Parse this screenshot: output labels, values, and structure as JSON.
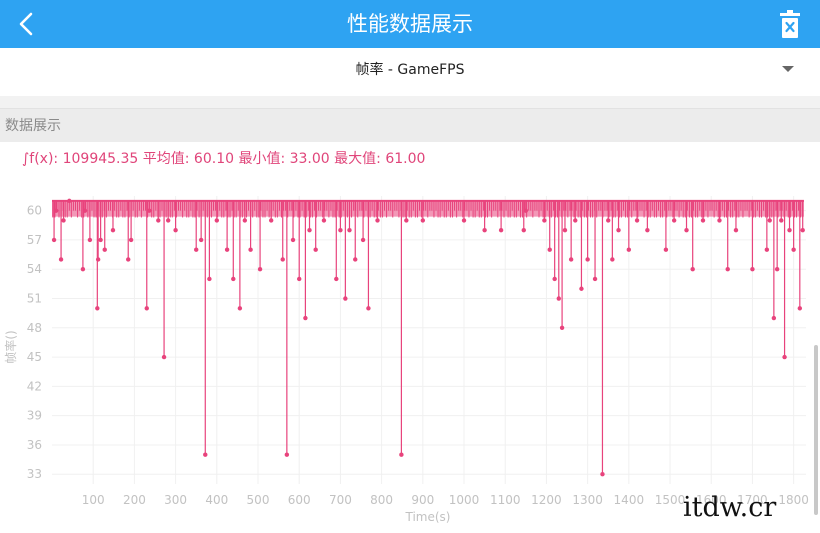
{
  "header": {
    "title": "性能数据展示",
    "back_icon": "chevron-left-icon",
    "delete_icon": "trash-icon",
    "background_color": "#2ea3f2"
  },
  "selector": {
    "label": "帧率 - GameFPS"
  },
  "section": {
    "title": "数据展示"
  },
  "stats": {
    "text": "∫f(x): 109945.35 平均值: 60.10 最小值: 33.00 最大值: 61.00"
  },
  "watermark": "itdw.cr",
  "chart_data": {
    "type": "line",
    "title": "",
    "xlabel": "Time(s)",
    "ylabel": "帧率()",
    "xlim": [
      0,
      1830
    ],
    "ylim": [
      32,
      61.5
    ],
    "x_ticks": [
      100,
      200,
      300,
      400,
      500,
      600,
      700,
      800,
      900,
      1000,
      1100,
      1200,
      1300,
      1400,
      1500,
      1600,
      1700,
      1800
    ],
    "y_ticks": [
      33,
      36,
      39,
      42,
      45,
      48,
      51,
      54,
      57,
      60
    ],
    "line_color": "#e8437c",
    "grid": true,
    "legend": "none",
    "series": [
      {
        "baseline": 61,
        "points": [
          [
            5,
            57
          ],
          [
            10,
            60
          ],
          [
            22,
            55
          ],
          [
            28,
            59
          ],
          [
            42,
            61
          ],
          [
            75,
            54
          ],
          [
            80,
            60
          ],
          [
            92,
            57
          ],
          [
            110,
            50
          ],
          [
            112,
            55
          ],
          [
            118,
            57
          ],
          [
            128,
            56
          ],
          [
            148,
            58
          ],
          [
            185,
            55
          ],
          [
            192,
            57
          ],
          [
            230,
            50
          ],
          [
            236,
            60
          ],
          [
            258,
            59
          ],
          [
            272,
            45
          ],
          [
            282,
            59
          ],
          [
            300,
            58
          ],
          [
            350,
            56
          ],
          [
            362,
            57
          ],
          [
            372,
            35
          ],
          [
            382,
            53
          ],
          [
            400,
            59
          ],
          [
            425,
            56
          ],
          [
            440,
            53
          ],
          [
            456,
            50
          ],
          [
            468,
            59
          ],
          [
            482,
            56
          ],
          [
            505,
            54
          ],
          [
            532,
            59
          ],
          [
            560,
            55
          ],
          [
            570,
            35
          ],
          [
            585,
            57
          ],
          [
            600,
            53
          ],
          [
            615,
            49
          ],
          [
            625,
            58
          ],
          [
            640,
            56
          ],
          [
            660,
            59
          ],
          [
            690,
            53
          ],
          [
            700,
            58
          ],
          [
            712,
            51
          ],
          [
            722,
            58
          ],
          [
            736,
            55
          ],
          [
            755,
            57
          ],
          [
            768,
            50
          ],
          [
            790,
            59
          ],
          [
            848,
            35
          ],
          [
            860,
            59
          ],
          [
            900,
            59
          ],
          [
            1000,
            59
          ],
          [
            1050,
            58
          ],
          [
            1090,
            58
          ],
          [
            1145,
            58
          ],
          [
            1150,
            60
          ],
          [
            1195,
            59
          ],
          [
            1208,
            56
          ],
          [
            1220,
            53
          ],
          [
            1230,
            51
          ],
          [
            1238,
            48
          ],
          [
            1245,
            58
          ],
          [
            1260,
            55
          ],
          [
            1270,
            59
          ],
          [
            1285,
            52
          ],
          [
            1300,
            55
          ],
          [
            1318,
            53
          ],
          [
            1336,
            33
          ],
          [
            1350,
            59
          ],
          [
            1360,
            55
          ],
          [
            1375,
            58
          ],
          [
            1400,
            56
          ],
          [
            1420,
            59
          ],
          [
            1445,
            58
          ],
          [
            1490,
            56
          ],
          [
            1510,
            59
          ],
          [
            1540,
            58
          ],
          [
            1555,
            54
          ],
          [
            1580,
            59
          ],
          [
            1620,
            59
          ],
          [
            1640,
            54
          ],
          [
            1660,
            58
          ],
          [
            1700,
            54
          ],
          [
            1735,
            56
          ],
          [
            1742,
            59
          ],
          [
            1752,
            49
          ],
          [
            1760,
            54
          ],
          [
            1770,
            59
          ],
          [
            1778,
            45
          ],
          [
            1790,
            58
          ],
          [
            1800,
            56
          ],
          [
            1815,
            50
          ],
          [
            1822,
            58
          ]
        ]
      }
    ]
  }
}
